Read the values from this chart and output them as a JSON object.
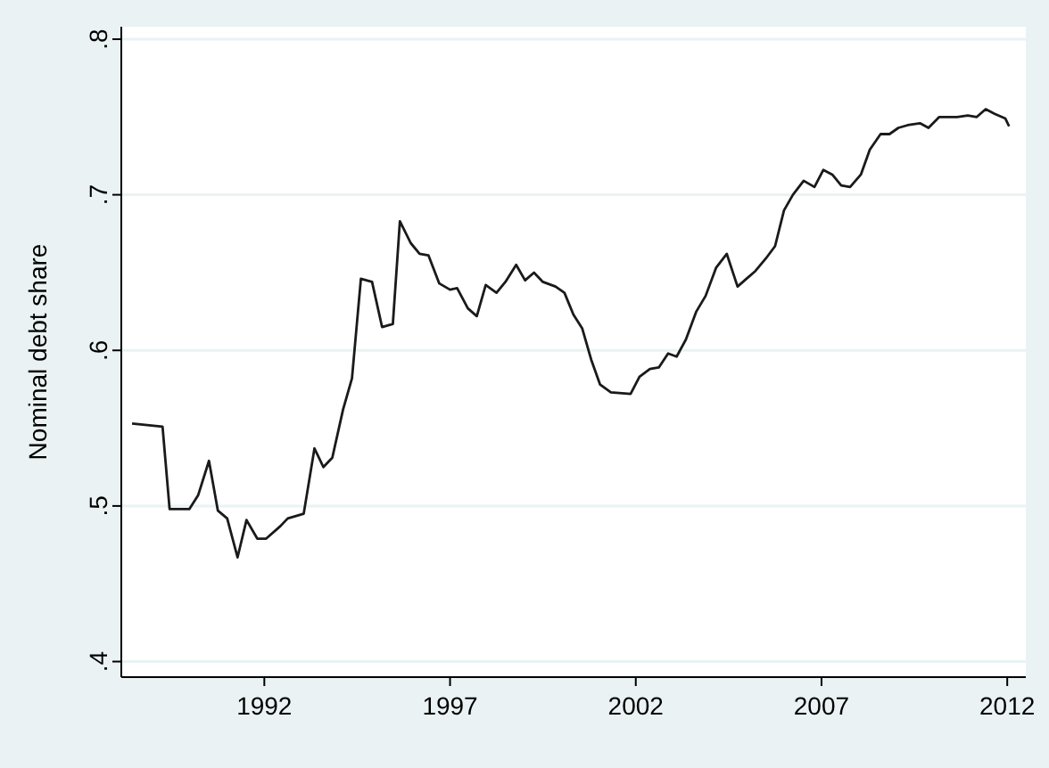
{
  "chart_data": {
    "type": "line",
    "ylabel": "Nominal debt share",
    "xlim": [
      1988.15,
      2012.5
    ],
    "ylim": [
      0.39,
      0.808
    ],
    "xticks": [
      1992,
      1997,
      2002,
      2007,
      2012
    ],
    "yticks": [
      {
        "value": 0.4,
        "label": ".4"
      },
      {
        "value": 0.5,
        "label": ".5"
      },
      {
        "value": 0.6,
        "label": ".6"
      },
      {
        "value": 0.7,
        "label": ".7"
      },
      {
        "value": 0.8,
        "label": ".8"
      }
    ],
    "grid": "y",
    "marker": "none",
    "line_style": "solid",
    "series": [
      {
        "color": "#1a1a1a",
        "x": [
          1988.44,
          1989.26,
          1989.45,
          1989.98,
          1990.22,
          1990.51,
          1990.75,
          1991.0,
          1991.28,
          1991.52,
          1991.81,
          1992.05,
          1992.43,
          1992.63,
          1993.06,
          1993.35,
          1993.59,
          1993.83,
          1994.12,
          1994.36,
          1994.6,
          1994.9,
          1995.17,
          1995.46,
          1995.65,
          1995.94,
          1996.18,
          1996.42,
          1996.71,
          1997.0,
          1997.19,
          1997.48,
          1997.72,
          1997.96,
          1998.25,
          1998.49,
          1998.78,
          1999.02,
          1999.26,
          1999.5,
          1999.84,
          2000.08,
          2000.32,
          2000.56,
          2000.8,
          2001.04,
          2001.33,
          2001.86,
          2002.1,
          2002.38,
          2002.62,
          2002.87,
          2003.1,
          2003.35,
          2003.63,
          2003.88,
          2004.16,
          2004.45,
          2004.74,
          2004.98,
          2005.22,
          2005.5,
          2005.75,
          2005.99,
          2006.23,
          2006.52,
          2006.81,
          2007.05,
          2007.29,
          2007.53,
          2007.77,
          2008.06,
          2008.3,
          2008.59,
          2008.83,
          2009.07,
          2009.36,
          2009.65,
          2009.88,
          2010.17,
          2010.65,
          2010.94,
          2011.18,
          2011.42,
          2011.66,
          2011.95,
          2012.05
        ],
        "values": [
          0.553,
          0.551,
          0.498,
          0.498,
          0.507,
          0.529,
          0.497,
          0.492,
          0.467,
          0.491,
          0.479,
          0.479,
          0.487,
          0.492,
          0.495,
          0.537,
          0.525,
          0.531,
          0.562,
          0.582,
          0.646,
          0.644,
          0.615,
          0.617,
          0.683,
          0.669,
          0.662,
          0.661,
          0.643,
          0.639,
          0.64,
          0.627,
          0.622,
          0.642,
          0.637,
          0.644,
          0.655,
          0.645,
          0.65,
          0.644,
          0.641,
          0.637,
          0.623,
          0.614,
          0.594,
          0.578,
          0.573,
          0.572,
          0.583,
          0.588,
          0.589,
          0.598,
          0.596,
          0.607,
          0.625,
          0.635,
          0.653,
          0.662,
          0.641,
          0.646,
          0.651,
          0.659,
          0.667,
          0.69,
          0.7,
          0.709,
          0.705,
          0.716,
          0.713,
          0.706,
          0.705,
          0.713,
          0.729,
          0.739,
          0.739,
          0.743,
          0.745,
          0.746,
          0.743,
          0.75,
          0.75,
          0.751,
          0.75,
          0.755,
          0.752,
          0.749,
          0.744
        ]
      }
    ]
  }
}
